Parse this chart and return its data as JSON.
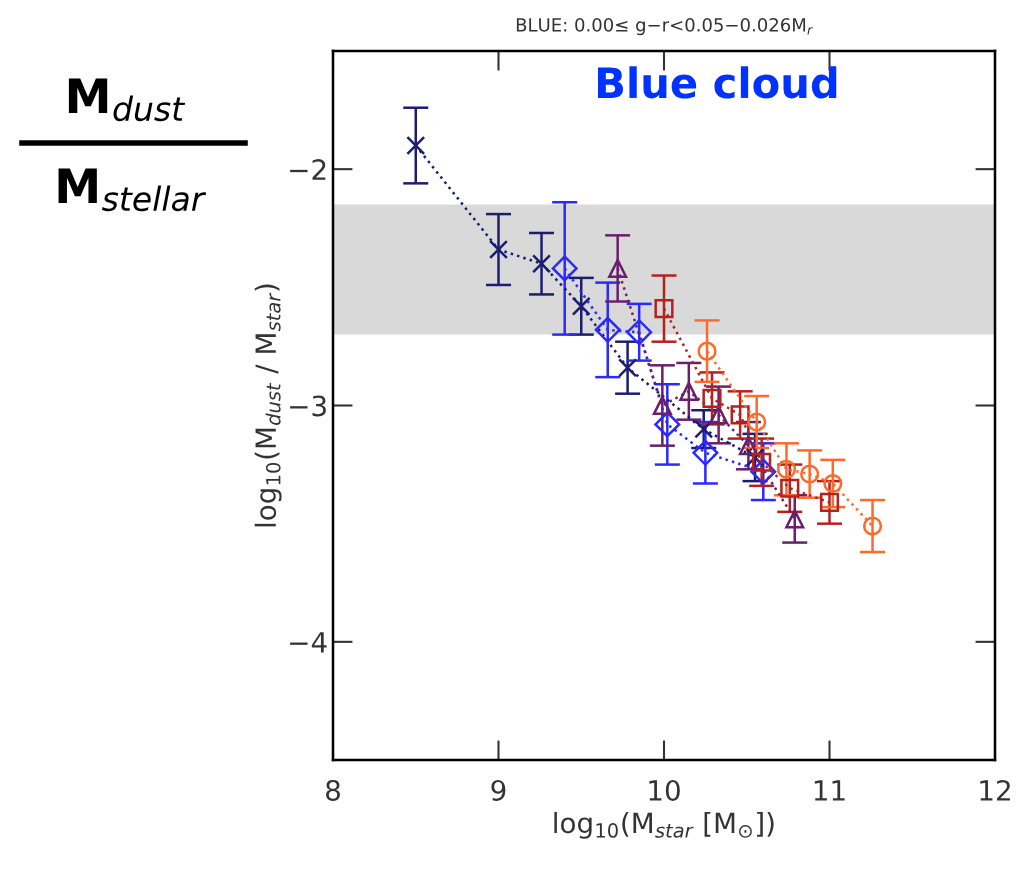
{
  "chart_data": {
    "type": "line",
    "title": "BLUE: 0.00≤ g−r<0.05−0.026M$_{r}$",
    "xlabel": "log$_{10}$(M$_{star}$ [M$_{⊙}$])",
    "ylabel": "log$_{10}$(M$_{dust}$ / M$_{star}$)",
    "annotations": [
      "Blue cloud",
      "M$_{dust}$",
      "M$_{stellar}$"
    ],
    "xlim": [
      8,
      12
    ],
    "ylim": [
      -4.5,
      -1.5
    ],
    "xticks": [
      8,
      9,
      10,
      11,
      12
    ],
    "yticks": [
      {
        "value": -2,
        "label": "−2"
      },
      {
        "value": -3,
        "label": "−3"
      },
      {
        "value": -4,
        "label": "−4"
      }
    ],
    "bands": [
      {
        "axis": "y",
        "from": -2.7,
        "to": -2.15,
        "color": "#d9d9d9"
      }
    ],
    "grid": false,
    "legend": false,
    "line_style": "dotted",
    "series": [
      {
        "color": "#1c1c70",
        "marker": "cross",
        "x": [
          8.5,
          9.0,
          9.26,
          9.5,
          9.78,
          10.24,
          10.55
        ],
        "values": [
          -1.9,
          -2.34,
          -2.4,
          -2.58,
          -2.84,
          -3.1,
          -3.22
        ],
        "errors": [
          0.16,
          0.15,
          0.13,
          0.12,
          0.11,
          0.08,
          0.1
        ]
      },
      {
        "color": "#2a2aff",
        "marker": "diamond",
        "x": [
          9.4,
          9.66,
          9.85,
          10.02,
          10.25,
          10.6
        ],
        "values": [
          -2.42,
          -2.68,
          -2.69,
          -3.08,
          -3.2,
          -3.28
        ],
        "errors": [
          0.28,
          0.2,
          0.12,
          0.17,
          0.13,
          0.12
        ]
      },
      {
        "color": "#6a1f6a",
        "marker": "triangle",
        "x": [
          9.72,
          9.99,
          10.15,
          10.33,
          10.51,
          10.79
        ],
        "values": [
          -2.42,
          -3.0,
          -2.94,
          -3.04,
          -3.17,
          -3.48
        ],
        "errors": [
          0.14,
          0.17,
          0.12,
          0.12,
          0.1,
          0.1
        ]
      },
      {
        "color": "#b5221e",
        "marker": "square",
        "x": [
          10.0,
          10.29,
          10.46,
          10.59,
          10.76,
          11.0
        ],
        "values": [
          -2.59,
          -2.97,
          -3.04,
          -3.24,
          -3.35,
          -3.41
        ],
        "errors": [
          0.14,
          0.11,
          0.1,
          0.1,
          0.1,
          0.09
        ]
      },
      {
        "color": "#ff6a28",
        "marker": "circle",
        "x": [
          10.26,
          10.56,
          10.74,
          10.88,
          11.02,
          11.26
        ],
        "values": [
          -2.77,
          -3.07,
          -3.27,
          -3.29,
          -3.33,
          -3.51
        ],
        "errors": [
          0.13,
          0.11,
          0.11,
          0.1,
          0.1,
          0.11
        ]
      }
    ]
  }
}
